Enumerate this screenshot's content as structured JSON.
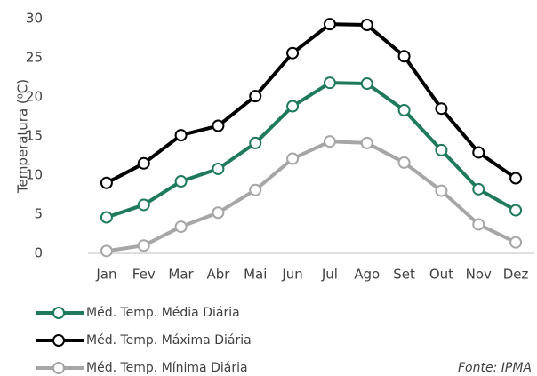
{
  "chart_data": {
    "type": "line",
    "ylabel": "Temperatura (⁰C)",
    "source": "Fonte: IPMA",
    "categories": [
      "Jan",
      "Fev",
      "Mar",
      "Abr",
      "Mai",
      "Jun",
      "Jul",
      "Ago",
      "Set",
      "Out",
      "Nov",
      "Dez"
    ],
    "series": [
      {
        "name": "Méd. Temp. Média Diária",
        "color": "#1f7a5c",
        "values": [
          4.6,
          6.2,
          9.2,
          10.8,
          14.1,
          18.8,
          21.8,
          21.7,
          18.3,
          13.2,
          8.2,
          5.5
        ]
      },
      {
        "name": "Méd. Temp. Máxima Diária",
        "color": "#000000",
        "values": [
          9.0,
          11.5,
          15.1,
          16.3,
          20.1,
          25.6,
          29.3,
          29.2,
          25.2,
          18.5,
          12.9,
          9.6
        ]
      },
      {
        "name": "Méd. Temp. Mínima Diária",
        "color": "#a6a6a6",
        "values": [
          0.3,
          1.0,
          3.4,
          5.2,
          8.1,
          12.1,
          14.3,
          14.1,
          11.6,
          8.0,
          3.7,
          1.4
        ]
      }
    ],
    "ylim": [
      0,
      30
    ],
    "yticks": [
      0,
      5,
      10,
      15,
      20,
      25,
      30
    ],
    "grid": false
  }
}
